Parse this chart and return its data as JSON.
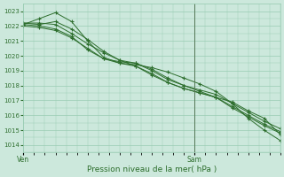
{
  "xlabel": "Pression niveau de la mer( hPa )",
  "xlim": [
    0,
    48
  ],
  "ylim": [
    1013.5,
    1023.5
  ],
  "yticks": [
    1014,
    1015,
    1016,
    1017,
    1018,
    1019,
    1020,
    1021,
    1022,
    1023
  ],
  "xtick_positions": [
    0,
    32
  ],
  "xtick_labels": [
    "Ven",
    "Sam"
  ],
  "background_color": "#cce8dc",
  "grid_color": "#99ccb3",
  "line_color": "#2d6e2d",
  "marker": "+",
  "vline_x": 32,
  "vline_color": "#557755",
  "lines": [
    {
      "x": [
        0,
        3,
        6,
        9,
        12,
        15,
        18,
        21,
        24,
        27,
        30,
        33,
        36,
        39,
        42,
        45,
        48
      ],
      "y": [
        1022.1,
        1022.5,
        1022.9,
        1022.3,
        1021.0,
        1019.9,
        1019.5,
        1019.4,
        1019.2,
        1018.9,
        1018.5,
        1018.1,
        1017.6,
        1016.8,
        1015.8,
        1015.0,
        1014.3
      ]
    },
    {
      "x": [
        0,
        3,
        6,
        9,
        12,
        15,
        18,
        21,
        24,
        27,
        30,
        33,
        36,
        39,
        42,
        45,
        48
      ],
      "y": [
        1022.0,
        1021.9,
        1021.7,
        1021.2,
        1020.5,
        1019.8,
        1019.5,
        1019.3,
        1018.8,
        1018.2,
        1017.8,
        1017.5,
        1017.2,
        1016.5,
        1015.9,
        1015.3,
        1014.8
      ]
    },
    {
      "x": [
        0,
        3,
        6,
        9,
        12,
        15,
        18,
        21,
        24,
        27,
        30,
        33,
        36,
        39,
        42,
        45,
        48
      ],
      "y": [
        1022.1,
        1022.0,
        1021.8,
        1021.3,
        1020.4,
        1019.8,
        1019.6,
        1019.5,
        1019.1,
        1018.5,
        1018.0,
        1017.6,
        1017.2,
        1016.6,
        1016.0,
        1015.4,
        1014.9
      ]
    },
    {
      "x": [
        0,
        3,
        6,
        9,
        12,
        15,
        18,
        21,
        24,
        27,
        30,
        33,
        36,
        39,
        42,
        45,
        48
      ],
      "y": [
        1022.2,
        1022.2,
        1022.1,
        1021.5,
        1020.8,
        1020.2,
        1019.7,
        1019.5,
        1019.0,
        1018.4,
        1018.0,
        1017.7,
        1017.4,
        1016.8,
        1016.2,
        1015.6,
        1015.1
      ]
    },
    {
      "x": [
        0,
        3,
        6,
        9,
        12,
        15,
        18,
        21,
        24,
        27,
        30,
        33,
        36,
        39,
        42,
        45,
        48
      ],
      "y": [
        1022.2,
        1022.1,
        1022.3,
        1021.8,
        1021.1,
        1020.3,
        1019.7,
        1019.3,
        1018.7,
        1018.2,
        1017.8,
        1017.5,
        1017.2,
        1016.9,
        1016.3,
        1015.8,
        1014.7
      ]
    }
  ]
}
